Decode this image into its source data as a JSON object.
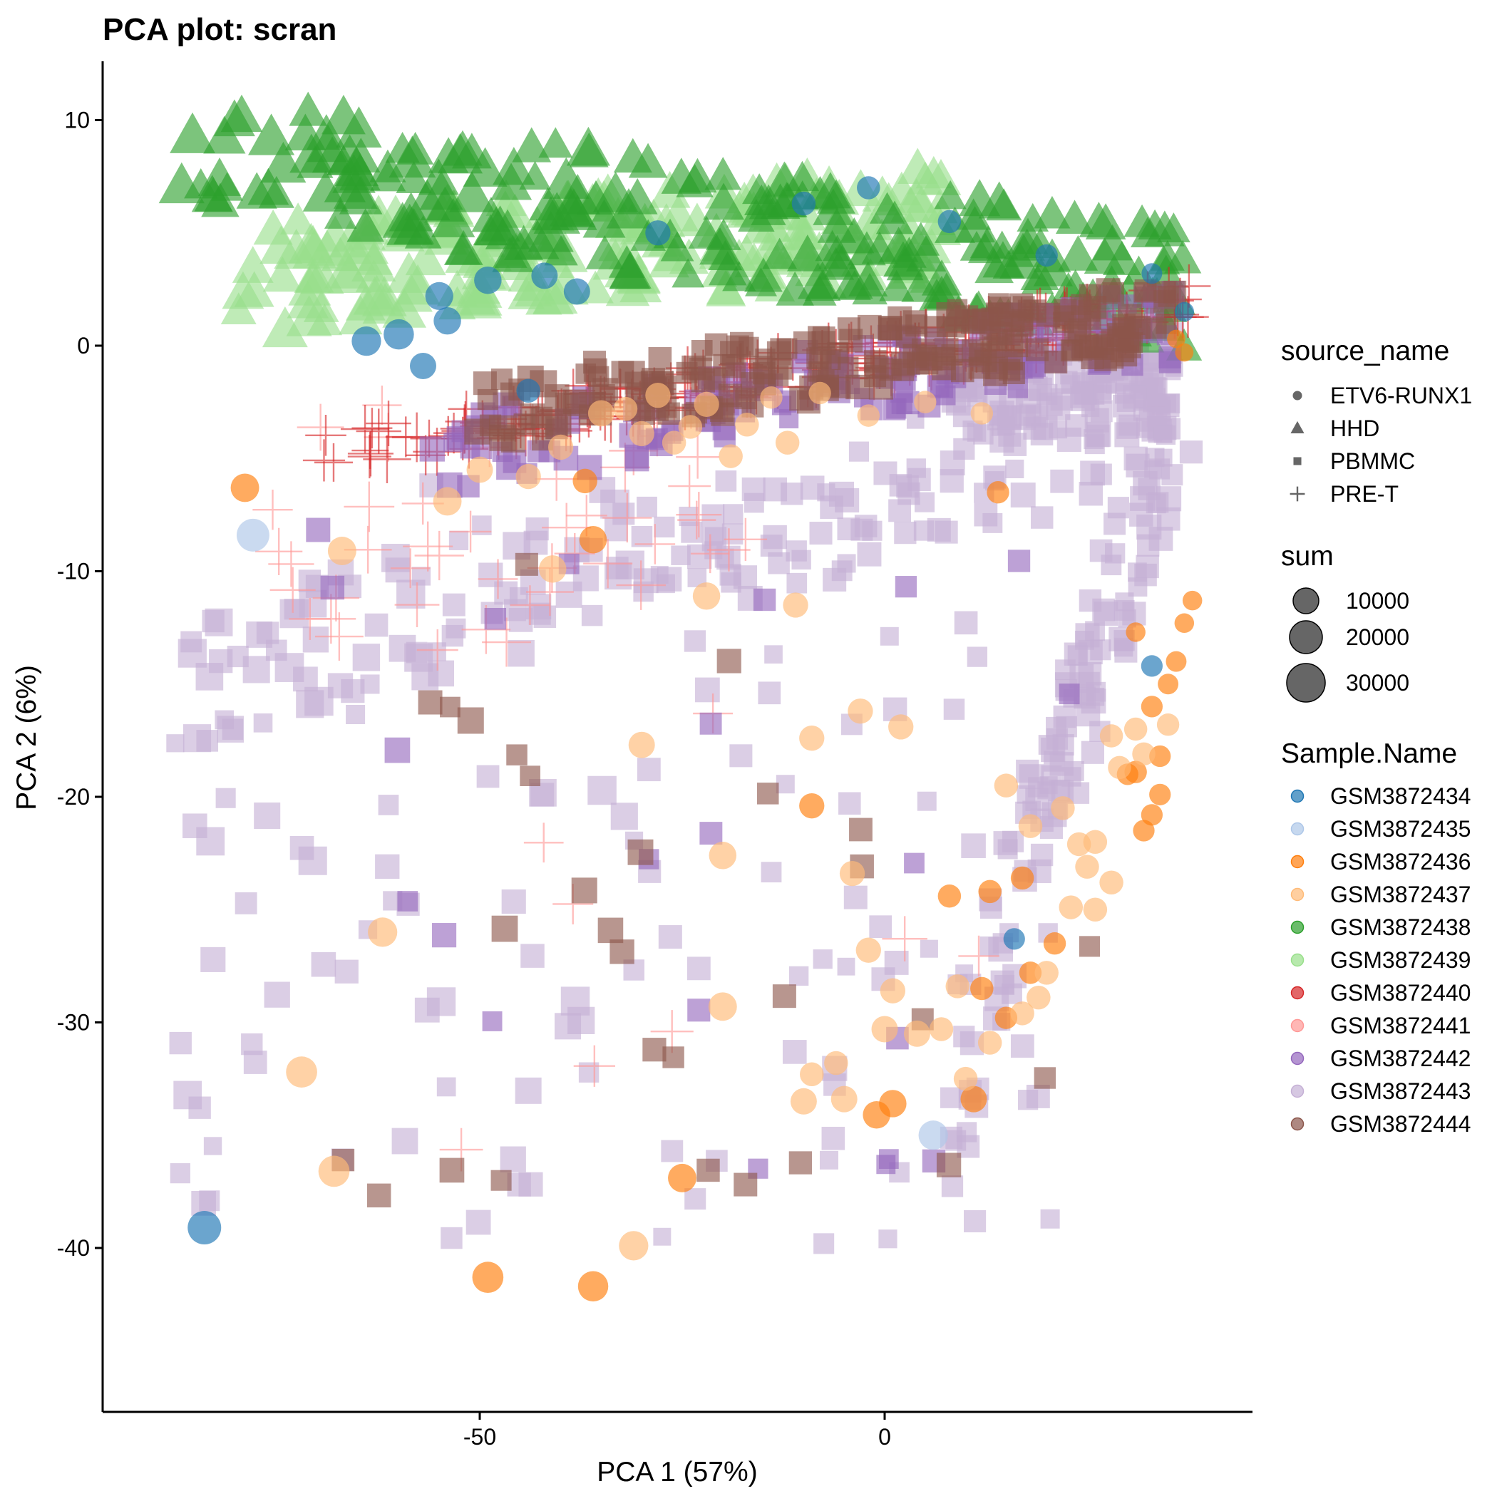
{
  "chart_data": {
    "type": "scatter",
    "title": "PCA plot: scran",
    "xlabel": "PCA 1 (57%)",
    "ylabel": "PCA 2 (6%)",
    "xlim": [
      -96,
      45
    ],
    "ylim": [
      -47.8,
      12.6
    ],
    "x_ticks": [
      {
        "value": -50,
        "label": "-50"
      },
      {
        "value": 0,
        "label": "0"
      }
    ],
    "y_ticks": [
      {
        "value": 10,
        "label": "10"
      },
      {
        "value": 0,
        "label": "0"
      },
      {
        "value": -10,
        "label": "-10"
      },
      {
        "value": -20,
        "label": "-20"
      },
      {
        "value": -30,
        "label": "-30"
      },
      {
        "value": -40,
        "label": "-40"
      }
    ],
    "grid": false,
    "legend_position": "right",
    "legend": {
      "shape": {
        "title": "source_name",
        "items": [
          {
            "label": "ETV6-RUNX1",
            "shape": "circle"
          },
          {
            "label": "HHD",
            "shape": "triangle"
          },
          {
            "label": "PBMMC",
            "shape": "square"
          },
          {
            "label": "PRE-T",
            "shape": "plus"
          }
        ]
      },
      "size": {
        "title": "sum",
        "items": [
          {
            "label": "10000",
            "value": 10000
          },
          {
            "label": "20000",
            "value": 20000
          },
          {
            "label": "30000",
            "value": 30000
          }
        ]
      },
      "color": {
        "title": "Sample.Name",
        "items": [
          {
            "label": "GSM3872434",
            "color": "#1F77B4"
          },
          {
            "label": "GSM3872435",
            "color": "#AEC7E8"
          },
          {
            "label": "GSM3872436",
            "color": "#FF7F0E"
          },
          {
            "label": "GSM3872437",
            "color": "#FFBB78"
          },
          {
            "label": "GSM3872438",
            "color": "#2CA02C"
          },
          {
            "label": "GSM3872439",
            "color": "#98DF8A"
          },
          {
            "label": "GSM3872440",
            "color": "#D62728"
          },
          {
            "label": "GSM3872441",
            "color": "#FF9896"
          },
          {
            "label": "GSM3872442",
            "color": "#9467BD"
          },
          {
            "label": "GSM3872443",
            "color": "#C5B0D5"
          },
          {
            "label": "GSM3872444",
            "color": "#8C564B"
          }
        ]
      }
    },
    "points": [
      [
        -84,
        -39.1,
        0,
        "ETV6-RUNX1",
        28000
      ],
      [
        -78,
        -8.4,
        1,
        "ETV6-RUNX1",
        26000
      ],
      [
        6,
        -35,
        1,
        "ETV6-RUNX1",
        18000
      ],
      [
        -64,
        0.2,
        0,
        "ETV6-RUNX1",
        18000
      ],
      [
        -60,
        0.5,
        0,
        "ETV6-RUNX1",
        20000
      ],
      [
        -55,
        2.2,
        0,
        "ETV6-RUNX1",
        15000
      ],
      [
        -49,
        2.9,
        0,
        "ETV6-RUNX1",
        14000
      ],
      [
        -42,
        3.1,
        0,
        "ETV6-RUNX1",
        12000
      ],
      [
        -28,
        5,
        0,
        "ETV6-RUNX1",
        10000
      ],
      [
        -10,
        6.3,
        0,
        "ETV6-RUNX1",
        8000
      ],
      [
        -2,
        7,
        0,
        "ETV6-RUNX1",
        7000
      ],
      [
        8,
        5.5,
        0,
        "ETV6-RUNX1",
        7000
      ],
      [
        20,
        4,
        0,
        "ETV6-RUNX1",
        6000
      ],
      [
        33,
        3.2,
        0,
        "ETV6-RUNX1",
        4000
      ],
      [
        37,
        1.5,
        0,
        "ETV6-RUNX1",
        3000
      ],
      [
        -57,
        -0.9,
        0,
        "ETV6-RUNX1",
        12000
      ],
      [
        -44,
        -2,
        0,
        "ETV6-RUNX1",
        8000
      ],
      [
        33,
        -14.2,
        0,
        "ETV6-RUNX1",
        5000
      ],
      [
        -54,
        1.1,
        0,
        "ETV6-RUNX1",
        14000
      ],
      [
        -38,
        2.4,
        0,
        "ETV6-RUNX1",
        12000
      ],
      [
        16,
        -26.3,
        0,
        "ETV6-RUNX1",
        5000
      ],
      [
        -79,
        -6.3,
        2,
        "ETV6-RUNX1",
        16000
      ],
      [
        -36,
        -8.6,
        2,
        "ETV6-RUNX1",
        14000
      ],
      [
        -49,
        -41.3,
        2,
        "ETV6-RUNX1",
        22000
      ],
      [
        -36,
        -41.7,
        2,
        "ETV6-RUNX1",
        20000
      ],
      [
        -25,
        -36.9,
        2,
        "ETV6-RUNX1",
        16000
      ],
      [
        -1,
        -34.1,
        2,
        "ETV6-RUNX1",
        14000
      ],
      [
        1,
        -33.6,
        2,
        "ETV6-RUNX1",
        14000
      ],
      [
        11,
        -33.4,
        2,
        "ETV6-RUNX1",
        12000
      ],
      [
        -9,
        -20.4,
        2,
        "ETV6-RUNX1",
        10000
      ],
      [
        -37,
        -6,
        2,
        "ETV6-RUNX1",
        9000
      ],
      [
        14,
        -6.5,
        2,
        "ETV6-RUNX1",
        6000
      ],
      [
        8,
        -24.4,
        2,
        "ETV6-RUNX1",
        7000
      ],
      [
        13,
        -24.2,
        2,
        "ETV6-RUNX1",
        7000
      ],
      [
        17,
        -23.6,
        2,
        "ETV6-RUNX1",
        7000
      ],
      [
        21,
        -26.5,
        2,
        "ETV6-RUNX1",
        6000
      ],
      [
        30,
        -19,
        2,
        "ETV6-RUNX1",
        5000
      ],
      [
        33,
        -16,
        2,
        "ETV6-RUNX1",
        5000
      ],
      [
        34,
        -18.2,
        2,
        "ETV6-RUNX1",
        5000
      ],
      [
        35,
        -15,
        2,
        "ETV6-RUNX1",
        4000
      ],
      [
        36,
        -14,
        2,
        "ETV6-RUNX1",
        4000
      ],
      [
        37,
        -12.3,
        2,
        "ETV6-RUNX1",
        3000
      ],
      [
        38,
        -11.3,
        2,
        "ETV6-RUNX1",
        3000
      ],
      [
        31,
        -12.7,
        2,
        "ETV6-RUNX1",
        3000
      ],
      [
        32,
        -21.5,
        2,
        "ETV6-RUNX1",
        5000
      ],
      [
        33,
        -20.8,
        2,
        "ETV6-RUNX1",
        5000
      ],
      [
        34,
        -19.9,
        2,
        "ETV6-RUNX1",
        5000
      ],
      [
        31,
        -18.9,
        2,
        "ETV6-RUNX1",
        6000
      ],
      [
        12,
        -28.5,
        2,
        "ETV6-RUNX1",
        7000
      ],
      [
        15,
        -29.8,
        2,
        "ETV6-RUNX1",
        6000
      ],
      [
        18,
        -27.8,
        2,
        "ETV6-RUNX1",
        6000
      ],
      [
        36,
        0.3,
        2,
        "ETV6-RUNX1",
        2000
      ],
      [
        37,
        -0.3,
        2,
        "ETV6-RUNX1",
        2000
      ],
      [
        -67,
        -9.1,
        3,
        "ETV6-RUNX1",
        16000
      ],
      [
        -41,
        -9.9,
        3,
        "ETV6-RUNX1",
        14000
      ],
      [
        -22,
        -11.1,
        3,
        "ETV6-RUNX1",
        14000
      ],
      [
        -11,
        -11.5,
        3,
        "ETV6-RUNX1",
        10000
      ],
      [
        -62,
        -26,
        3,
        "ETV6-RUNX1",
        18000
      ],
      [
        -72,
        -32.2,
        3,
        "ETV6-RUNX1",
        22000
      ],
      [
        -68,
        -36.6,
        3,
        "ETV6-RUNX1",
        22000
      ],
      [
        -31,
        -39.9,
        3,
        "ETV6-RUNX1",
        18000
      ],
      [
        -20,
        -29.3,
        3,
        "ETV6-RUNX1",
        16000
      ],
      [
        -20,
        -22.6,
        3,
        "ETV6-RUNX1",
        14000
      ],
      [
        -30,
        -17.7,
        3,
        "ETV6-RUNX1",
        12000
      ],
      [
        -9,
        -17.4,
        3,
        "ETV6-RUNX1",
        10000
      ],
      [
        -3,
        -16.2,
        3,
        "ETV6-RUNX1",
        10000
      ],
      [
        2,
        -16.9,
        3,
        "ETV6-RUNX1",
        10000
      ],
      [
        -4,
        -23.4,
        3,
        "ETV6-RUNX1",
        10000
      ],
      [
        -2,
        -26.8,
        3,
        "ETV6-RUNX1",
        10000
      ],
      [
        -10,
        -33.5,
        3,
        "ETV6-RUNX1",
        12000
      ],
      [
        -5,
        -33.4,
        3,
        "ETV6-RUNX1",
        12000
      ],
      [
        0,
        -30.3,
        3,
        "ETV6-RUNX1",
        12000
      ],
      [
        4,
        -30.5,
        3,
        "ETV6-RUNX1",
        12000
      ],
      [
        1,
        -28.6,
        3,
        "ETV6-RUNX1",
        10000
      ],
      [
        -54,
        -6.9,
        3,
        "ETV6-RUNX1",
        16000
      ],
      [
        -50,
        -5.5,
        3,
        "ETV6-RUNX1",
        12000
      ],
      [
        -35,
        -3,
        3,
        "ETV6-RUNX1",
        12000
      ],
      [
        -30,
        -3.9,
        3,
        "ETV6-RUNX1",
        10000
      ],
      [
        -22,
        -2.6,
        3,
        "ETV6-RUNX1",
        10000
      ],
      [
        -17,
        -3.5,
        3,
        "ETV6-RUNX1",
        8000
      ],
      [
        -12,
        -4.3,
        3,
        "ETV6-RUNX1",
        8000
      ],
      [
        -28,
        -2.2,
        3,
        "ETV6-RUNX1",
        10000
      ],
      [
        -40,
        -4.5,
        3,
        "ETV6-RUNX1",
        10000
      ],
      [
        -44,
        -5.8,
        3,
        "ETV6-RUNX1",
        10000
      ],
      [
        12,
        -3,
        3,
        "ETV6-RUNX1",
        6000
      ],
      [
        15,
        -19.5,
        3,
        "ETV6-RUNX1",
        8000
      ],
      [
        18,
        -21.3,
        3,
        "ETV6-RUNX1",
        8000
      ],
      [
        22,
        -20.5,
        3,
        "ETV6-RUNX1",
        8000
      ],
      [
        26,
        -22,
        3,
        "ETV6-RUNX1",
        8000
      ],
      [
        28,
        -23.8,
        3,
        "ETV6-RUNX1",
        8000
      ],
      [
        26,
        -25,
        3,
        "ETV6-RUNX1",
        8000
      ],
      [
        29,
        -18.7,
        3,
        "ETV6-RUNX1",
        7000
      ],
      [
        31,
        -17,
        3,
        "ETV6-RUNX1",
        7000
      ],
      [
        32,
        -18.1,
        3,
        "ETV6-RUNX1",
        7000
      ],
      [
        28,
        -17.3,
        3,
        "ETV6-RUNX1",
        7000
      ],
      [
        35,
        -16.8,
        3,
        "ETV6-RUNX1",
        6000
      ],
      [
        20,
        -27.8,
        3,
        "ETV6-RUNX1",
        8000
      ],
      [
        17,
        -29.6,
        3,
        "ETV6-RUNX1",
        8000
      ],
      [
        9,
        -28.4,
        3,
        "ETV6-RUNX1",
        8000
      ],
      [
        7,
        -30.3,
        3,
        "ETV6-RUNX1",
        8000
      ],
      [
        10,
        -32.5,
        3,
        "ETV6-RUNX1",
        8000
      ],
      [
        13,
        -30.9,
        3,
        "ETV6-RUNX1",
        8000
      ],
      [
        23,
        -24.9,
        3,
        "ETV6-RUNX1",
        8000
      ],
      [
        24,
        -22.1,
        3,
        "ETV6-RUNX1",
        8000
      ],
      [
        25,
        -23.1,
        3,
        "ETV6-RUNX1",
        8000
      ],
      [
        19,
        -28.9,
        3,
        "ETV6-RUNX1",
        8000
      ],
      [
        -6,
        -31.8,
        3,
        "ETV6-RUNX1",
        8000
      ],
      [
        -9,
        -32.3,
        3,
        "ETV6-RUNX1",
        8000
      ],
      [
        -2,
        -3.1,
        3,
        "ETV6-RUNX1",
        6000
      ],
      [
        5,
        -2.5,
        3,
        "ETV6-RUNX1",
        6000
      ],
      [
        -8,
        -2.1,
        3,
        "ETV6-RUNX1",
        6000
      ],
      [
        -24,
        -3.6,
        3,
        "ETV6-RUNX1",
        8000
      ],
      [
        -19,
        -4.9,
        3,
        "ETV6-RUNX1",
        8000
      ],
      [
        -32,
        -2.8,
        3,
        "ETV6-RUNX1",
        8000
      ],
      [
        -26,
        -4.3,
        3,
        "ETV6-RUNX1",
        8000
      ],
      [
        -14,
        -2.3,
        3,
        "ETV6-RUNX1",
        6000
      ]
    ],
    "point_colors": [
      "#1F77B4",
      "#AEC7E8",
      "#FF7F0E",
      "#FFBB78"
    ]
  },
  "generated_series": [
    {
      "sample": "GSM3872438",
      "source": "HHD",
      "color": "#2CA02C",
      "count": 230,
      "x": [
        -88,
        37
      ],
      "y_top": [
        7.5,
        1.5
      ],
      "spread": 5.5,
      "size": [
        5000,
        24000
      ]
    },
    {
      "sample": "GSM3872439",
      "source": "HHD",
      "color": "#98DF8A",
      "count": 200,
      "x": [
        -80,
        10
      ],
      "y_top": [
        2.0,
        4.5
      ],
      "spread": 5.0,
      "size": [
        8000,
        22000
      ]
    },
    {
      "sample": "GSM3872440",
      "source": "PRE-T",
      "color": "#D62728",
      "count": 220,
      "x": [
        -74,
        38
      ],
      "y_top": [
        -5.5,
        1.5
      ],
      "spread": 2.0,
      "size": [
        6000,
        22000
      ]
    },
    {
      "sample": "GSM3872441",
      "source": "PRE-T",
      "color": "#FF9896",
      "count": 60,
      "x": [
        -76,
        20
      ],
      "y_top": [
        -10.5,
        -4
      ],
      "spread": 8,
      "size": [
        8000,
        24000
      ]
    },
    {
      "sample": "GSM3872442",
      "source": "PBMMC",
      "color": "#9467BD",
      "count": 170,
      "x": [
        -60,
        36
      ],
      "y_top": [
        -4.5,
        1.8
      ],
      "spread": 3.5,
      "size": [
        6000,
        20000
      ]
    },
    {
      "sample": "GSM3872443",
      "source": "PBMMC",
      "color": "#C5B0D5",
      "count": 520,
      "x": [
        -88,
        38
      ],
      "y_top": [
        -12,
        0
      ],
      "spread": 33,
      "size": [
        4000,
        30000
      ]
    },
    {
      "sample": "GSM3872444",
      "source": "PBMMC",
      "color": "#8C564B",
      "count": 240,
      "x": [
        -52,
        36
      ],
      "y_top": [
        -2.5,
        2.0
      ],
      "spread": 3.2,
      "size": [
        8000,
        24000
      ]
    }
  ]
}
